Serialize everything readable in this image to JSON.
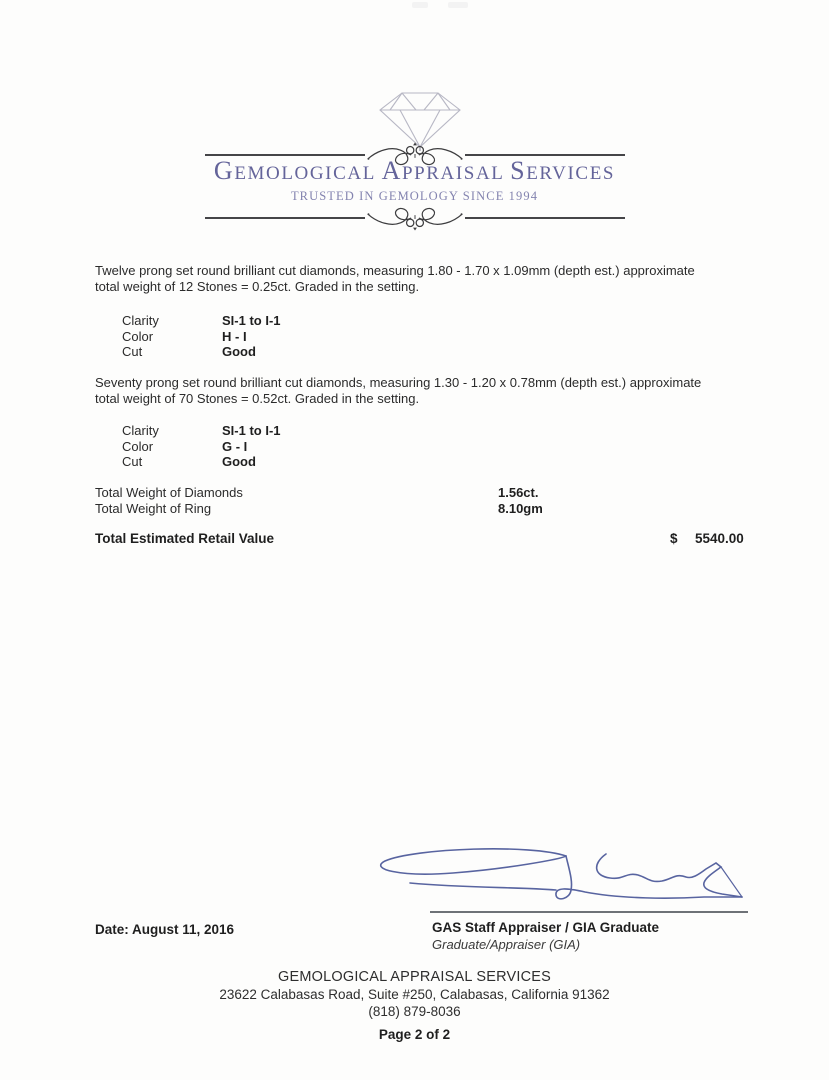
{
  "colors": {
    "brand_purple": "#64649a",
    "subtitle_purple": "#8383af",
    "signature_ink_blue": "#5864a0",
    "body_text": "#2b2b2b"
  },
  "logo": {
    "icon": "diamond-outline-icon",
    "ornament_icon": "calligraphic-flourish-icon",
    "title": "GEMOLOGICAL APPRAISAL SERVICES",
    "subtitle": "TRUSTED IN GEMOLOGY SINCE 1994"
  },
  "items": [
    {
      "description": "Twelve prong set round brilliant cut diamonds, measuring 1.80 - 1.70 x 1.09mm (depth est.) approximate\ntotal weight of 12 Stones = 0.25ct. Graded in the setting.",
      "grades": [
        {
          "label": "Clarity",
          "value": "SI-1 to I-1"
        },
        {
          "label": "Color",
          "value": "H - I"
        },
        {
          "label": "Cut",
          "value": "Good"
        }
      ]
    },
    {
      "description": "Seventy prong set round brilliant cut diamonds, measuring 1.30 - 1.20 x 0.78mm (depth est.) approximate\ntotal weight of 70 Stones = 0.52ct. Graded in the setting.",
      "grades": [
        {
          "label": "Clarity",
          "value": "SI-1 to I-1"
        },
        {
          "label": "Color",
          "value": "G - I"
        },
        {
          "label": "Cut",
          "value": "Good"
        }
      ]
    }
  ],
  "totals": {
    "rows": [
      {
        "label": "Total Weight of Diamonds",
        "value": "1.56ct."
      },
      {
        "label": "Total Weight of Ring",
        "value": "8.10gm"
      }
    ],
    "retail_label": "Total Estimated Retail Value",
    "retail_currency": "$",
    "retail_amount": "5540.00"
  },
  "signature_block": {
    "signature_icon": "handwritten-signature",
    "date": "Date: August 11, 2016",
    "appraiser_title": "GAS Staff Appraiser / GIA Graduate",
    "appraiser_subtitle": "Graduate/Appraiser (GIA)"
  },
  "footer": {
    "company": "GEMOLOGICAL APPRAISAL SERVICES",
    "address": "23622 Calabasas Road, Suite #250, Calabasas, California 91362",
    "phone": "(818) 879-8036",
    "page": "Page 2 of 2"
  }
}
